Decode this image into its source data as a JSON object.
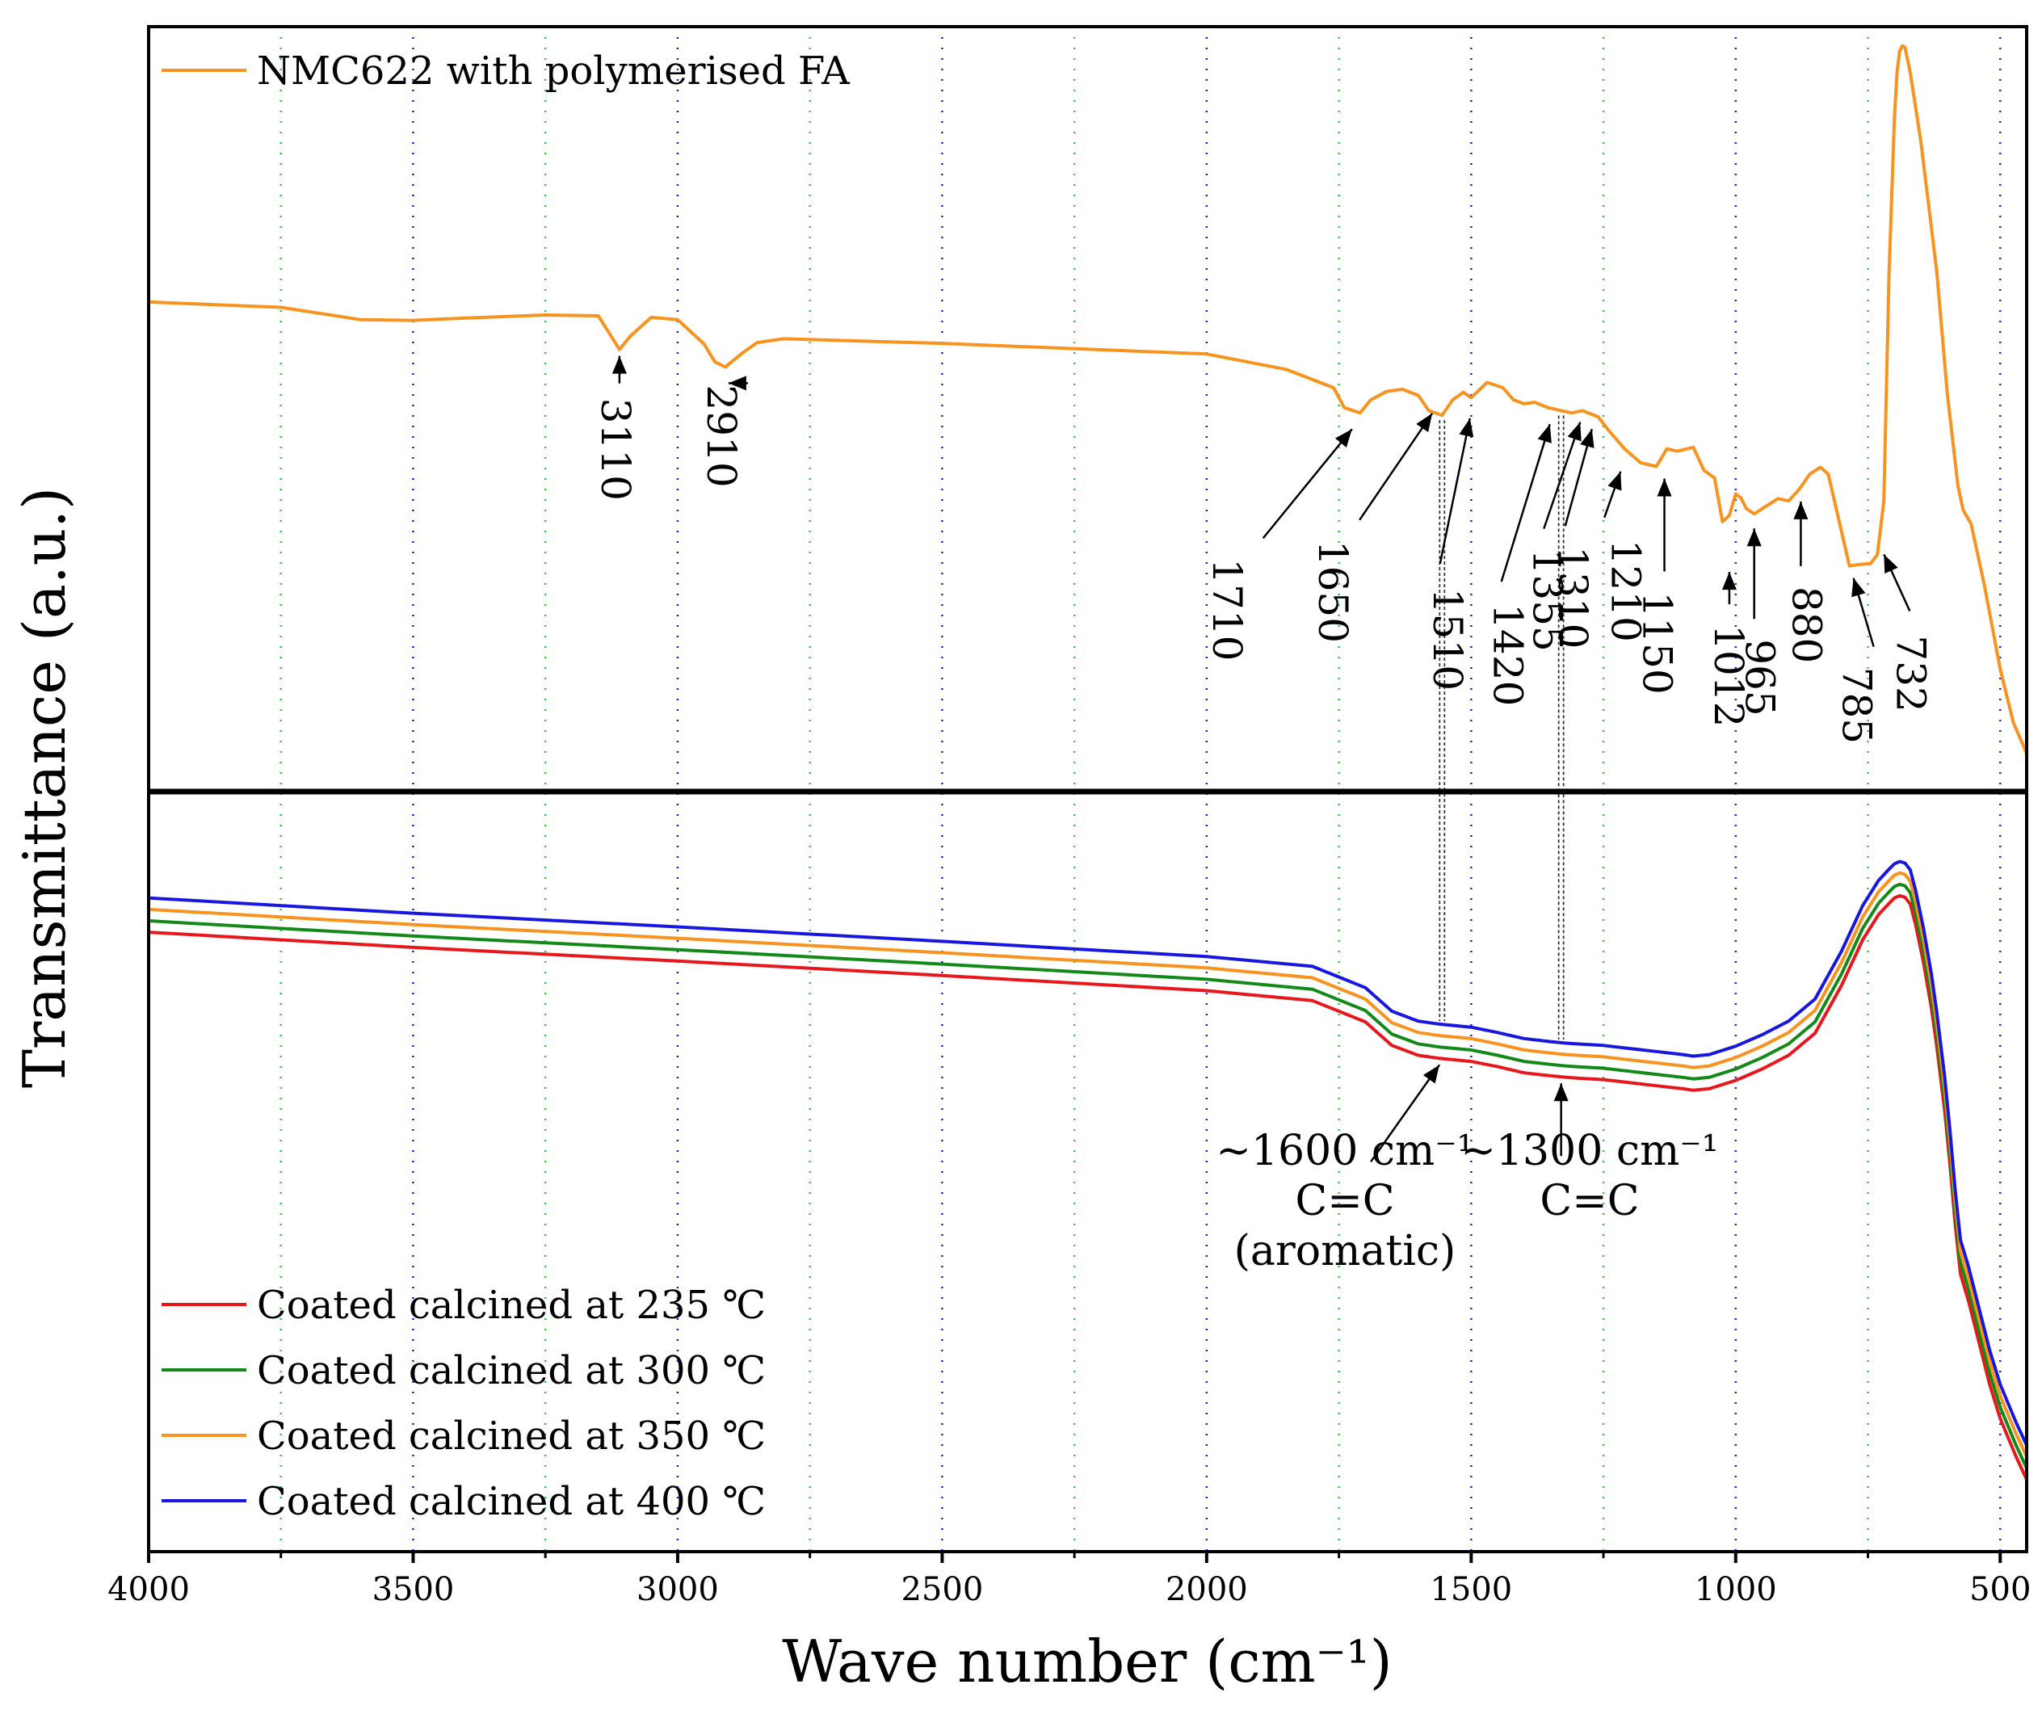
{
  "chart_data": {
    "type": "line",
    "xlabel": "Wave number (cm⁻¹)",
    "ylabel": "Transmittance (a.u.)",
    "xlim": [
      4000,
      450
    ],
    "x_ticks": [
      4000,
      3500,
      3000,
      2500,
      2000,
      1500,
      1000,
      500
    ],
    "x_tick_labels": [
      "4000",
      "3500",
      "3000",
      "2500",
      "2000",
      "1500",
      "1000",
      "500"
    ],
    "major_grid_x": [
      3500,
      3000,
      2500,
      2000,
      1500,
      1000,
      500
    ],
    "minor_grid_x": [
      3750,
      3250,
      2750,
      2250,
      1750,
      1250,
      750
    ],
    "panels": [
      {
        "name": "top",
        "ylim": [
          0,
          100
        ],
        "legend": "top-left",
        "series": [
          {
            "name": "NMC622 with polymerised FA",
            "color": "#f7931e",
            "x": [
              4000,
              3750,
              3600,
              3500,
              3400,
              3250,
              3150,
              3130,
              3110,
              3090,
              3050,
              3000,
              2950,
              2930,
              2910,
              2880,
              2850,
              2800,
              2500,
              2000,
              1850,
              1760,
              1740,
              1710,
              1690,
              1660,
              1630,
              1600,
              1580,
              1555,
              1535,
              1515,
              1500,
              1470,
              1440,
              1420,
              1400,
              1380,
              1355,
              1330,
              1310,
              1290,
              1260,
              1240,
              1210,
              1180,
              1150,
              1130,
              1110,
              1080,
              1060,
              1040,
              1025,
              1012,
              1000,
              990,
              980,
              965,
              945,
              920,
              900,
              880,
              860,
              840,
              825,
              800,
              785,
              765,
              745,
              732,
              720,
              710,
              700,
              695,
              690,
              685,
              680,
              670,
              650,
              620,
              600,
              580,
              570,
              555,
              530,
              500,
              475,
              450
            ],
            "values": [
              64,
              63.3,
              61.7,
              61.6,
              61.9,
              62.3,
              62.2,
              60,
              57.8,
              59.5,
              62,
              61.7,
              58.5,
              56.2,
              55.5,
              57.2,
              58.7,
              59.2,
              58.6,
              57.2,
              55.2,
              52.8,
              50.2,
              49.5,
              51.2,
              52.3,
              52.6,
              51.8,
              49.8,
              49.2,
              51.2,
              52.2,
              51.5,
              53.5,
              52.8,
              51.2,
              50.7,
              50.9,
              50.2,
              49.8,
              49.5,
              49.8,
              49,
              47.2,
              44.8,
              43,
              42.5,
              44.8,
              44.5,
              45,
              42,
              41,
              35.3,
              36.1,
              38.9,
              38.4,
              37,
              36.3,
              37.2,
              38.3,
              38,
              39.5,
              41.5,
              42.4,
              41.5,
              34,
              29.5,
              29.7,
              29.8,
              31,
              38,
              68,
              88,
              94,
              96.8,
              97.5,
              97.3,
              94,
              85,
              68,
              52,
              40,
              36.8,
              35,
              27,
              16,
              9,
              5
            ]
          }
        ],
        "annotations": [
          {
            "label": "3110",
            "x": 3110
          },
          {
            "label": "2910",
            "x": 2910
          },
          {
            "label": "1710",
            "x": 1710
          },
          {
            "label": "1650",
            "x": 1650
          },
          {
            "label": "1510",
            "x": 1510
          },
          {
            "label": "1420",
            "x": 1420
          },
          {
            "label": "1355",
            "x": 1355
          },
          {
            "label": "1310",
            "x": 1310
          },
          {
            "label": "1210",
            "x": 1210
          },
          {
            "label": "1150",
            "x": 1150
          },
          {
            "label": "1012",
            "x": 1012
          },
          {
            "label": "965",
            "x": 965
          },
          {
            "label": "880",
            "x": 880
          },
          {
            "label": "785",
            "x": 785
          },
          {
            "label": "732",
            "x": 732
          }
        ]
      },
      {
        "name": "bottom",
        "ylim": [
          0,
          100
        ],
        "legend": "bottom-left",
        "series": [
          {
            "name": "Coated calcined at 235 ℃",
            "color": "#e8171b",
            "offset": 0
          },
          {
            "name": "Coated calcined at 300 ℃",
            "color": "#138a17",
            "offset": 1.5
          },
          {
            "name": "Coated calcined at 350 ℃",
            "color": "#f7931e",
            "offset": 3.0
          },
          {
            "name": "Coated calcined at 400 ℃",
            "color": "#1717e0",
            "offset": 4.5
          }
        ],
        "base_curve": {
          "x": [
            4000,
            3500,
            3000,
            2500,
            2000,
            1800,
            1700,
            1650,
            1600,
            1560,
            1500,
            1450,
            1400,
            1350,
            1320,
            1300,
            1250,
            1200,
            1150,
            1100,
            1080,
            1050,
            1000,
            950,
            900,
            850,
            800,
            760,
            730,
            710,
            700,
            690,
            680,
            670,
            660,
            645,
            630,
            620,
            605,
            595,
            585,
            575,
            560,
            540,
            520,
            500,
            470,
            450
          ],
          "values": [
            81.5,
            79.5,
            77.7,
            75.8,
            73.8,
            72.5,
            69.7,
            66.6,
            65.3,
            64.9,
            64.5,
            63.8,
            63.0,
            62.6,
            62.4,
            62.3,
            62.1,
            61.7,
            61.3,
            60.9,
            60.7,
            60.9,
            62,
            63.5,
            65.3,
            68.2,
            74.5,
            80.5,
            83.8,
            85.3,
            86,
            86.3,
            86.1,
            85.2,
            82.5,
            77.5,
            71.5,
            66.5,
            58,
            51,
            43,
            36.5,
            33,
            27.5,
            22,
            17.5,
            12.5,
            9.5
          ]
        },
        "annotations": [
          {
            "label_lines": [
              "~1600 cm⁻¹",
              "C=C",
              "(aromatic)"
            ],
            "x": 1560
          },
          {
            "label_lines": [
              "~1300 cm⁻¹",
              "C=C"
            ],
            "x": 1330
          }
        ],
        "guide_lines_x": [
          1555,
          1330
        ]
      }
    ]
  }
}
